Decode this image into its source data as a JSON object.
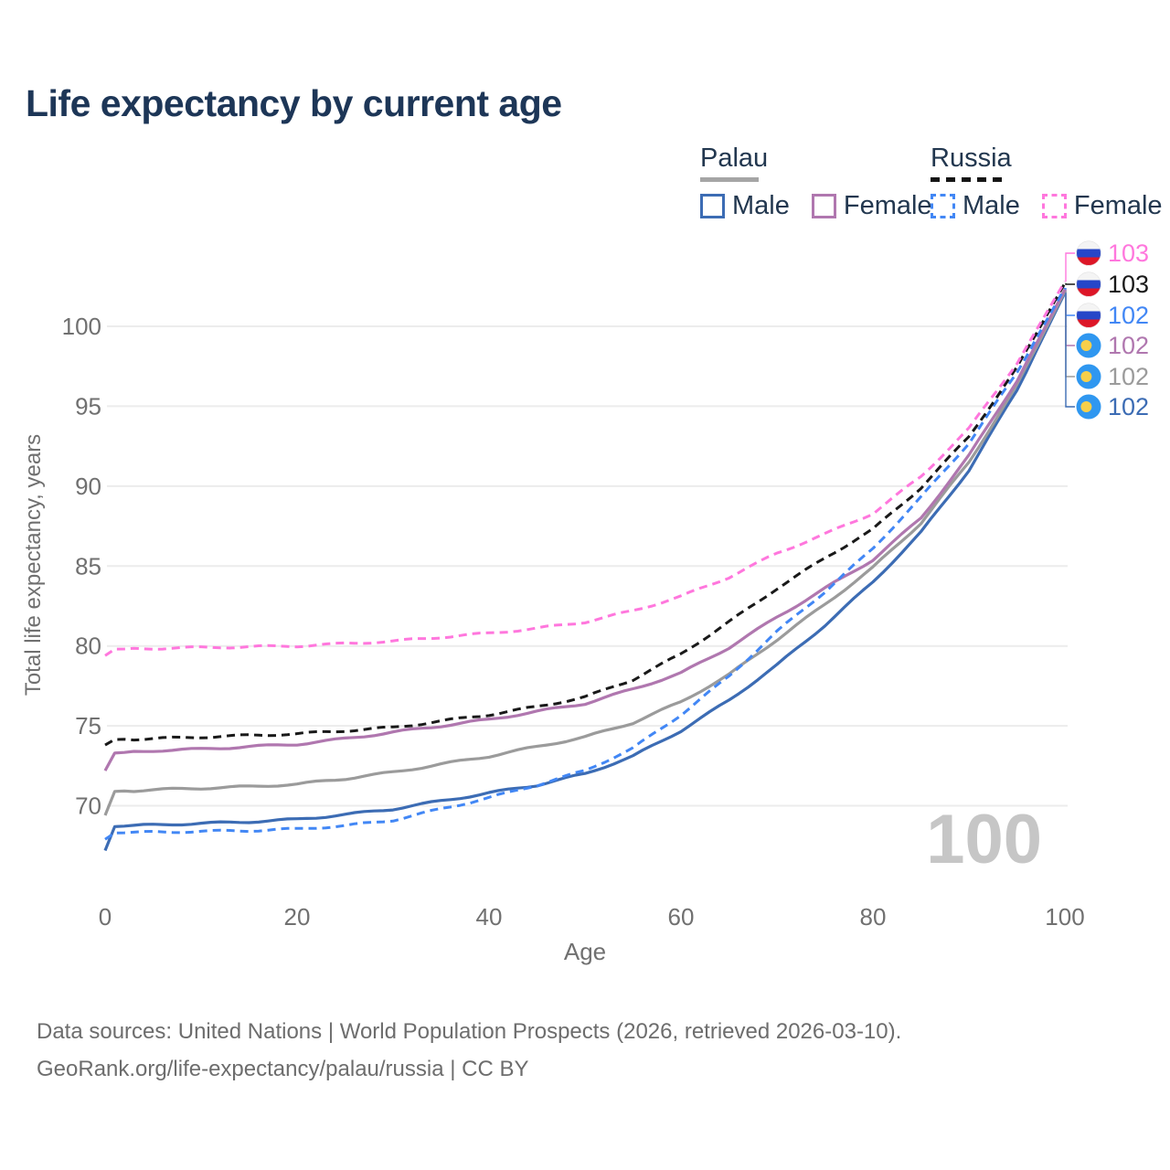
{
  "header": {
    "title": "Life expectancy by current age"
  },
  "legend": {
    "groups": [
      {
        "label": "Palau",
        "underline_color": "#a5a5a5",
        "underline_style": "solid",
        "items": [
          {
            "label": "Male",
            "color": "#3c6cb4",
            "dashed": false
          },
          {
            "label": "Female",
            "color": "#b077af",
            "dashed": false
          }
        ]
      },
      {
        "label": "Russia",
        "underline_color": "#151515",
        "underline_style": "dashed",
        "items": [
          {
            "label": "Male",
            "color": "#4287f5",
            "dashed": true
          },
          {
            "label": "Female",
            "color": "#ff77dd",
            "dashed": true
          }
        ]
      }
    ]
  },
  "chart_data": {
    "type": "line",
    "title": "Life expectancy by current age",
    "xlabel": "Age",
    "ylabel": "Total life expectancy, years",
    "x_ticks": [
      0,
      20,
      40,
      60,
      80,
      100
    ],
    "y_ticks": [
      70,
      75,
      80,
      85,
      90,
      95,
      100
    ],
    "xlim": [
      0,
      100
    ],
    "ylim": [
      66.5,
      103.5
    ],
    "grid": "horizontal-only",
    "gridline_color": "#ececec",
    "tick_color": "#707070",
    "watermark": "100",
    "watermark_color": "#c6c6c6",
    "ages": [
      0,
      1,
      5,
      10,
      15,
      20,
      25,
      30,
      35,
      40,
      45,
      50,
      55,
      60,
      65,
      70,
      75,
      80,
      85,
      90,
      95,
      100
    ],
    "series": [
      {
        "name": "Russia Female",
        "country": "Russia",
        "sex": "Female",
        "color": "#ff77dd",
        "dashed": true,
        "end_label": "103",
        "values": [
          79.4,
          79.8,
          79.85,
          79.9,
          79.95,
          80.0,
          80.15,
          80.3,
          80.55,
          80.8,
          81.1,
          81.5,
          82.2,
          83.1,
          84.3,
          85.8,
          87.0,
          88.3,
          90.6,
          93.6,
          97.7,
          102.8
        ]
      },
      {
        "name": "Russia Both Sexes",
        "country": "Russia",
        "sex": "Both",
        "color": "#191919",
        "dashed": true,
        "end_label": "103",
        "values": [
          73.8,
          74.15,
          74.2,
          74.3,
          74.4,
          74.5,
          74.7,
          74.9,
          75.3,
          75.7,
          76.2,
          76.8,
          77.9,
          79.5,
          81.5,
          83.6,
          85.5,
          87.3,
          89.9,
          93.1,
          97.4,
          102.7
        ]
      },
      {
        "name": "Russia Male",
        "country": "Russia",
        "sex": "Male",
        "color": "#4287f5",
        "dashed": true,
        "end_label": "102",
        "values": [
          67.9,
          68.3,
          68.35,
          68.4,
          68.45,
          68.55,
          68.75,
          69.1,
          69.8,
          70.5,
          71.3,
          72.2,
          73.6,
          75.7,
          78.1,
          80.9,
          83.4,
          86.1,
          89.3,
          92.7,
          97.1,
          102.4
        ]
      },
      {
        "name": "Palau Female",
        "country": "Palau",
        "sex": "Female",
        "color": "#b077af",
        "dashed": false,
        "end_label": "102",
        "values": [
          72.2,
          73.3,
          73.45,
          73.55,
          73.7,
          73.85,
          74.2,
          74.6,
          75.0,
          75.4,
          75.9,
          76.4,
          77.3,
          78.3,
          79.9,
          81.8,
          83.6,
          85.4,
          88.0,
          91.9,
          96.6,
          102.3
        ]
      },
      {
        "name": "Palau Both Sexes",
        "country": "Palau",
        "sex": "Both",
        "color": "#9b9b9b",
        "dashed": false,
        "end_label": "102",
        "values": [
          69.4,
          70.9,
          71.0,
          71.1,
          71.2,
          71.35,
          71.7,
          72.1,
          72.6,
          73.1,
          73.7,
          74.3,
          75.2,
          76.5,
          78.2,
          80.4,
          82.6,
          84.9,
          87.7,
          91.5,
          96.3,
          102.2
        ]
      },
      {
        "name": "Palau Male",
        "country": "Palau",
        "sex": "Male",
        "color": "#3c6cb4",
        "dashed": false,
        "end_label": "102",
        "values": [
          67.2,
          68.7,
          68.8,
          68.9,
          69.0,
          69.15,
          69.45,
          69.8,
          70.3,
          70.8,
          71.3,
          72.0,
          73.1,
          74.7,
          76.6,
          78.8,
          81.3,
          84.0,
          87.1,
          91.0,
          96.0,
          102.1
        ]
      }
    ],
    "flag_colors": {
      "russia": {
        "white": "#f4f4f4",
        "blue": "#2646c8",
        "red": "#dd1627",
        "outline": "#dcdcdc"
      },
      "palau": {
        "blue": "#2f97f0",
        "yellow": "#f6cf4a"
      }
    }
  },
  "footer": {
    "line1": "Data sources: United Nations | World Population Prospects (2026, retrieved 2026-03-10).",
    "line2": "GeoRank.org/life-expectancy/palau/russia | CC BY"
  }
}
